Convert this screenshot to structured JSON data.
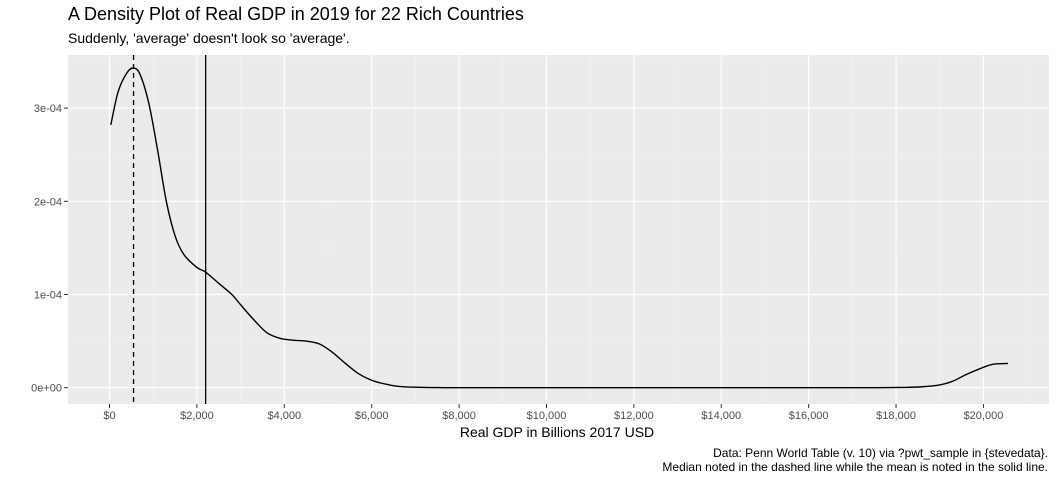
{
  "chart_data": {
    "type": "line",
    "title": "A Density Plot of Real GDP in 2019 for 22 Rich Countries",
    "subtitle": "Suddenly, 'average' doesn't look so 'average'.",
    "xlabel": "Real GDP in Billions 2017 USD",
    "ylabel": "",
    "caption": [
      "Data: Penn World Table (v. 10) via ?pwt_sample in {stevedata}.",
      "Median noted in the dashed line while the mean is noted in the solid line."
    ],
    "xlim": [
      -950,
      21500
    ],
    "ylim": [
      -1.75e-05,
      0.000357
    ],
    "x_ticks": [
      0,
      2000,
      4000,
      6000,
      8000,
      10000,
      12000,
      14000,
      16000,
      18000,
      20000
    ],
    "x_tick_labels": [
      "$0",
      "$2,000",
      "$4,000",
      "$6,000",
      "$8,000",
      "$10,000",
      "$12,000",
      "$14,000",
      "$16,000",
      "$18,000",
      "$20,000"
    ],
    "y_ticks": [
      0,
      0.0001,
      0.0002,
      0.0003
    ],
    "y_tick_labels": [
      "0e+00",
      "1e-04",
      "2e-04",
      "3e-04"
    ],
    "grid": true,
    "series": [
      {
        "x": [
          30,
          200,
          400,
          550,
          700,
          900,
          1100,
          1300,
          1500,
          1700,
          2000,
          2200,
          2500,
          2800,
          3000,
          3300,
          3600,
          3900,
          4200,
          4500,
          4800,
          5100,
          5400,
          5700,
          6000,
          6300,
          6600,
          7000,
          7500,
          8000,
          9000,
          10000,
          12000,
          14000,
          16000,
          17500,
          18200,
          18600,
          19000,
          19300,
          19600,
          19900,
          20200,
          20560
        ],
        "y": [
          0.000282,
          0.000318,
          0.000338,
          0.000343,
          0.000336,
          0.000305,
          0.000255,
          0.0002,
          0.000163,
          0.000143,
          0.000129,
          0.000124,
          0.000112,
          0.0001,
          8.9e-05,
          7.3e-05,
          5.9e-05,
          5.3e-05,
          5.1e-05,
          5e-05,
          4.7e-05,
          3.8e-05,
          2.6e-05,
          1.5e-05,
          8e-06,
          4e-06,
          1.5e-06,
          5e-07,
          1e-07,
          0.0,
          0.0,
          0.0,
          0.0,
          0.0,
          0.0,
          0.0,
          3e-07,
          1e-06,
          3e-06,
          7e-06,
          1.4e-05,
          2e-05,
          2.5e-05,
          2.6e-05
        ]
      }
    ],
    "median_x": 550,
    "mean_x": 2200,
    "colors": {
      "panel": "#ebebeb",
      "grid_major": "#ffffff",
      "line": "#000000",
      "tick": "#333333",
      "tick_label": "#4d4d4d"
    }
  }
}
